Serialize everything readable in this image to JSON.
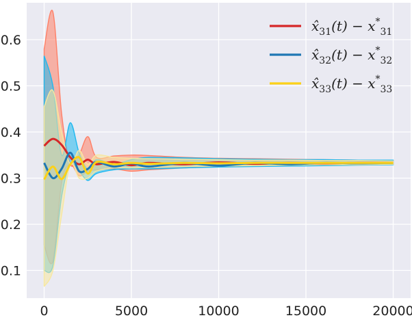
{
  "chart_data": {
    "type": "line",
    "title": "",
    "xlabel": "",
    "ylabel": "",
    "xlim": [
      -1000,
      21000
    ],
    "ylim": [
      0.04,
      0.68
    ],
    "x_ticks": [
      0,
      5000,
      10000,
      15000,
      20000
    ],
    "y_ticks": [
      0.1,
      0.2,
      0.3,
      0.4,
      0.5,
      0.6
    ],
    "x_tick_labels": [
      "0",
      "5000",
      "10000",
      "15000",
      "20000"
    ],
    "y_tick_labels": [
      "0.1",
      "0.2",
      "0.3",
      "0.4",
      "0.5",
      "0.6"
    ],
    "grid": true,
    "legend_position": "top-right",
    "background": "#eaeaf2",
    "series": [
      {
        "name": "x̂31(t) − x*31",
        "legend": {
          "base": "x̂",
          "sub1": "31",
          "mid": "(t) − x",
          "sup": "*",
          "sub2": "31"
        },
        "color": "#d62728",
        "band_color": "#ff7f66",
        "x": [
          0,
          500,
          1000,
          1500,
          2000,
          2500,
          3000,
          4000,
          5000,
          6000,
          8000,
          10000,
          12000,
          14000,
          16000,
          18000,
          20000
        ],
        "mean": [
          0.37,
          0.385,
          0.372,
          0.345,
          0.33,
          0.34,
          0.33,
          0.335,
          0.328,
          0.333,
          0.33,
          0.334,
          0.331,
          0.333,
          0.332,
          0.333,
          0.333
        ],
        "upper": [
          0.58,
          0.66,
          0.44,
          0.33,
          0.35,
          0.39,
          0.345,
          0.348,
          0.35,
          0.349,
          0.345,
          0.343,
          0.342,
          0.341,
          0.34,
          0.339,
          0.338
        ],
        "lower": [
          0.155,
          0.12,
          0.29,
          0.33,
          0.305,
          0.315,
          0.318,
          0.32,
          0.315,
          0.318,
          0.322,
          0.325,
          0.326,
          0.327,
          0.328,
          0.329,
          0.33
        ]
      },
      {
        "name": "x̂32(t) − x*32",
        "legend": {
          "base": "x̂",
          "sub1": "32",
          "mid": "(t) − x",
          "sup": "*",
          "sub2": "32"
        },
        "color": "#1f77b4",
        "band_color": "#1fb8ef",
        "x": [
          0,
          500,
          1000,
          1500,
          2000,
          2500,
          3000,
          4000,
          5000,
          6000,
          8000,
          10000,
          12000,
          14000,
          16000,
          18000,
          20000
        ],
        "mean": [
          0.333,
          0.3,
          0.32,
          0.355,
          0.315,
          0.32,
          0.335,
          0.325,
          0.332,
          0.325,
          0.333,
          0.327,
          0.333,
          0.33,
          0.333,
          0.332,
          0.333
        ],
        "upper": [
          0.565,
          0.5,
          0.35,
          0.42,
          0.355,
          0.32,
          0.34,
          0.33,
          0.34,
          0.345,
          0.344,
          0.342,
          0.341,
          0.34,
          0.34,
          0.339,
          0.339
        ],
        "lower": [
          0.1,
          0.11,
          0.26,
          0.33,
          0.315,
          0.295,
          0.31,
          0.318,
          0.32,
          0.32,
          0.322,
          0.324,
          0.325,
          0.326,
          0.327,
          0.328,
          0.329
        ]
      },
      {
        "name": "x̂33(t) − x*33",
        "legend": {
          "base": "x̂",
          "sub1": "33",
          "mid": "(t) − x",
          "sup": "*",
          "sub2": "33"
        },
        "color": "#fcd118",
        "band_color": "#f7e8a0",
        "x": [
          0,
          500,
          1000,
          1500,
          2000,
          2500,
          3000,
          4000,
          5000,
          6000,
          8000,
          10000,
          12000,
          14000,
          16000,
          18000,
          20000
        ],
        "mean": [
          0.297,
          0.325,
          0.298,
          0.33,
          0.345,
          0.31,
          0.335,
          0.33,
          0.333,
          0.331,
          0.333,
          0.332,
          0.333,
          0.333,
          0.333,
          0.333,
          0.333
        ],
        "upper": [
          0.455,
          0.49,
          0.4,
          0.33,
          0.36,
          0.33,
          0.35,
          0.345,
          0.343,
          0.342,
          0.341,
          0.34,
          0.339,
          0.339,
          0.338,
          0.338,
          0.337
        ],
        "lower": [
          0.065,
          0.1,
          0.22,
          0.33,
          0.3,
          0.3,
          0.315,
          0.322,
          0.322,
          0.323,
          0.325,
          0.326,
          0.327,
          0.328,
          0.329,
          0.329,
          0.33
        ]
      }
    ]
  }
}
